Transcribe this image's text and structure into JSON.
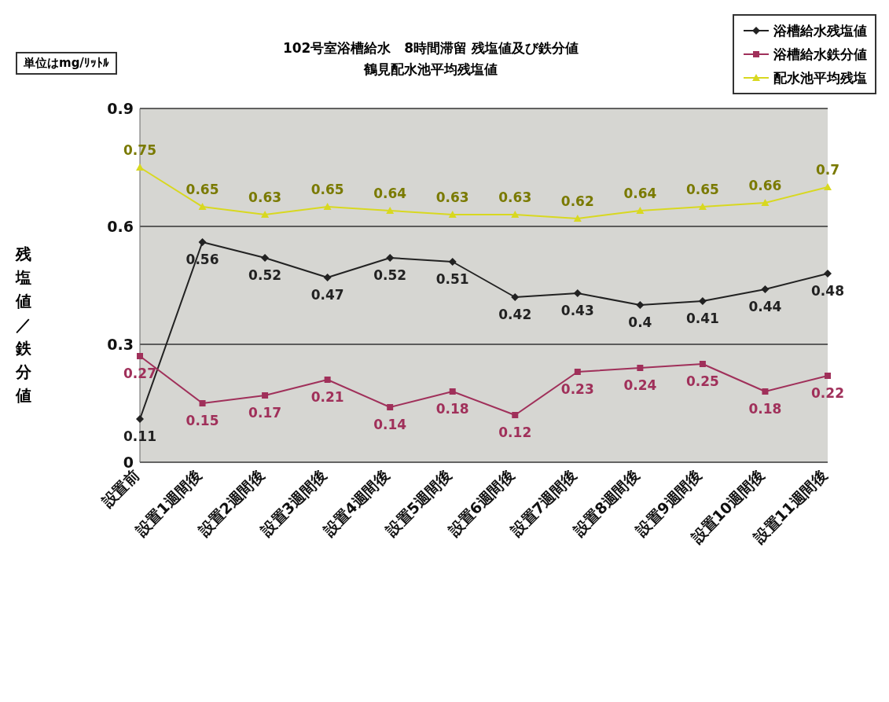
{
  "chart_data": {
    "type": "line",
    "title": "102号室浴槽給水　8時間滞留 残塩値及び鉄分値",
    "subtitle": "鶴見配水池平均残塩値",
    "ylabel": "残塩値／鉄分値",
    "annotations": [
      "単位はmg/ﾘｯﾄﾙ"
    ],
    "categories": [
      "設置前",
      "設置1週間後",
      "設置2週間後",
      "設置3週間後",
      "設置4週間後",
      "設置5週間後",
      "設置6週間後",
      "設置7週間後",
      "設置8週間後",
      "設置9週間後",
      "設置10週間後",
      "設置11週間後"
    ],
    "series": [
      {
        "name": "浴槽給水残塩値",
        "color": "#222222",
        "marker": "diamond",
        "values": [
          0.11,
          0.56,
          0.52,
          0.47,
          0.52,
          0.51,
          0.42,
          0.43,
          0.4,
          0.41,
          0.44,
          0.48
        ]
      },
      {
        "name": "浴槽給水鉄分値",
        "color": "#a0305a",
        "marker": "square",
        "values": [
          0.27,
          0.15,
          0.17,
          0.21,
          0.14,
          0.18,
          0.12,
          0.23,
          0.24,
          0.25,
          0.18,
          0.22
        ]
      },
      {
        "name": "配水池平均残塩",
        "color": "#d8d820",
        "marker": "triangle",
        "values": [
          0.75,
          0.65,
          0.63,
          0.65,
          0.64,
          0.63,
          0.63,
          0.62,
          0.64,
          0.65,
          0.66,
          0.7
        ]
      }
    ],
    "ylim": [
      0,
      0.9
    ],
    "yticks": [
      0,
      0.3,
      0.6,
      0.9
    ],
    "grid": "y",
    "legend": "top right",
    "data_labels": true,
    "line_style": "solid"
  }
}
